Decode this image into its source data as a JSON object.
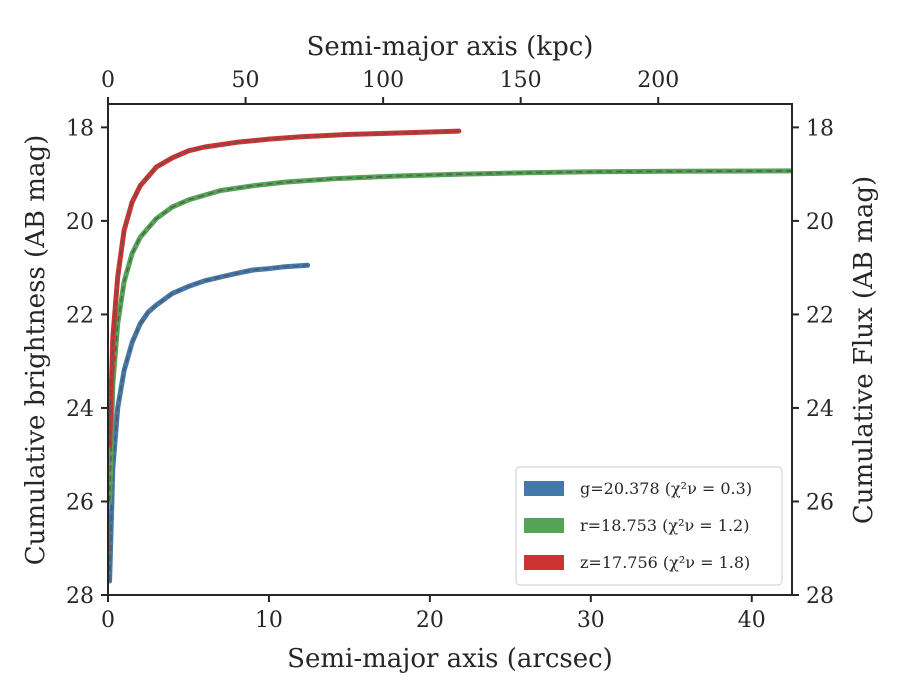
{
  "chart_data": {
    "type": "line",
    "xlabel": "Semi-major axis (arcsec)",
    "ylabel": "Cumulative brightness (AB mag)",
    "top_xlabel": "Semi-major axis (kpc)",
    "right_ylabel": "Cumulative Flux (AB mag)",
    "xlim": [
      0,
      42.5
    ],
    "ylim": [
      28,
      17.5
    ],
    "y_inverted": true,
    "x_ticks": [
      "0",
      "10",
      "20",
      "30",
      "40"
    ],
    "y_ticks": [
      "18",
      "20",
      "22",
      "24",
      "26",
      "28"
    ],
    "top_x_ticks": [
      "0",
      "50",
      "100",
      "150",
      "200"
    ],
    "kpc_per_arcsec": 5.85,
    "legend_position": "lower-right",
    "series": [
      {
        "name": "g=20.378 (χ²ν = 0.3)",
        "name_main": "g=20.378",
        "chi2": "0.3",
        "color": "#4477aa",
        "x": [
          0.1,
          0.3,
          0.6,
          1.0,
          1.5,
          2.0,
          2.5,
          3.0,
          4.0,
          5.0,
          6.0,
          7.0,
          8.0,
          9.0,
          10.0,
          11.0,
          12.4
        ],
        "y": [
          27.7,
          25.3,
          24.0,
          23.2,
          22.6,
          22.2,
          21.95,
          21.8,
          21.55,
          21.4,
          21.28,
          21.2,
          21.12,
          21.05,
          21.02,
          20.98,
          20.95
        ]
      },
      {
        "name": "r=18.753 (χ²ν = 1.2)",
        "name_main": "r=18.753",
        "chi2": "1.2",
        "color": "#55a355",
        "x": [
          0.1,
          0.3,
          0.6,
          1.0,
          1.5,
          2.0,
          3.0,
          4.0,
          5.0,
          7.0,
          9.0,
          11.0,
          14.0,
          18.0,
          22.0,
          26.0,
          30.0,
          35.0,
          42.5
        ],
        "y": [
          26.0,
          23.5,
          22.2,
          21.3,
          20.7,
          20.35,
          19.95,
          19.7,
          19.55,
          19.35,
          19.25,
          19.17,
          19.1,
          19.04,
          19.0,
          18.97,
          18.95,
          18.94,
          18.93
        ]
      },
      {
        "name": "z=17.756 (χ²ν = 1.8)",
        "name_main": "z=17.756",
        "chi2": "1.8",
        "color": "#cc3333",
        "x": [
          0.1,
          0.3,
          0.6,
          1.0,
          1.5,
          2.0,
          3.0,
          4.0,
          5.0,
          6.0,
          8.0,
          10.0,
          12.0,
          15.0,
          18.0,
          21.8
        ],
        "y": [
          24.8,
          22.5,
          21.2,
          20.2,
          19.6,
          19.25,
          18.85,
          18.65,
          18.5,
          18.42,
          18.32,
          18.25,
          18.2,
          18.15,
          18.12,
          18.08
        ]
      }
    ]
  }
}
